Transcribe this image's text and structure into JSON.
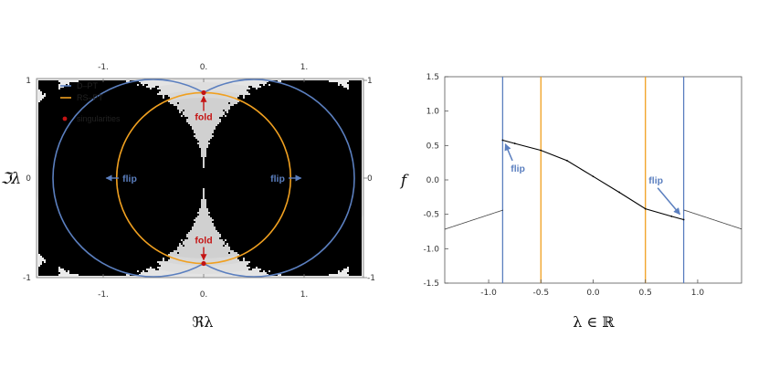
{
  "chart_data": [
    {
      "type": "scatter",
      "title": "",
      "xlabel": "ℜλ",
      "ylabel": "ℑλ",
      "xlim": [
        -1.5,
        1.5
      ],
      "ylim": [
        -1,
        1
      ],
      "x_ticks": [
        "-1.",
        "0.",
        "1."
      ],
      "y_ticks": [
        "-1",
        "0",
        "1"
      ],
      "legend": {
        "placement": "top-left",
        "items": [
          {
            "name": "D–PT",
            "color": "#5b7fbf"
          },
          {
            "name": "RS–PT",
            "color": "#f0a020"
          },
          {
            "name": "singularities",
            "color": "#c41414"
          }
        ]
      },
      "series": [
        {
          "name": "D–PT",
          "kind": "boundary of two unit-radius discs centred at λ = ±0.5",
          "color": "#5b7fbf"
        },
        {
          "name": "RS–PT",
          "kind": "circle |λ| = 0.5√3",
          "radius": 0.866,
          "color": "#f0a020"
        },
        {
          "name": "singularities",
          "points": [
            [
              0,
              0.866
            ],
            [
              0,
              -0.866
            ]
          ],
          "color": "#c41414"
        }
      ],
      "annotations": [
        {
          "text": "flip",
          "at": [
            -0.9,
            0
          ],
          "color": "#5b7fbf"
        },
        {
          "text": "flip",
          "at": [
            0.9,
            0
          ],
          "color": "#5b7fbf"
        },
        {
          "text": "fold",
          "at": [
            0,
            0.6
          ],
          "color": "#c41414"
        },
        {
          "text": "fold",
          "at": [
            0,
            -0.6
          ],
          "color": "#c41414"
        }
      ],
      "grid": false
    },
    {
      "type": "line",
      "title": "",
      "xlabel": "λ ∈ ℝ",
      "ylabel": "f",
      "xlim": [
        -1.42,
        1.42
      ],
      "ylim": [
        -1.5,
        1.5
      ],
      "x_ticks": [
        "-1.0",
        "-0.5",
        "0.0",
        "0.5",
        "1.0"
      ],
      "y_ticks": [
        "-1.5",
        "-1.0",
        "-0.5",
        "0.0",
        "0.5",
        "1.0",
        "1.5"
      ],
      "vertical_lines": [
        {
          "x": -0.866,
          "color": "#5b7fbf"
        },
        {
          "x": -0.5,
          "color": "#f0a020"
        },
        {
          "x": 0.5,
          "color": "#f0a020"
        },
        {
          "x": 0.866,
          "color": "#5b7fbf"
        }
      ],
      "series": [
        {
          "name": "",
          "x": [
            -0.866,
            -0.75,
            -0.5,
            -0.25,
            0.0,
            0.25,
            0.5,
            0.75,
            0.866
          ],
          "y": [
            0.577,
            0.53,
            0.43,
            0.28,
            0.05,
            -0.18,
            -0.42,
            -0.53,
            -0.577
          ]
        }
      ],
      "annotations": [
        {
          "text": "flip",
          "at": [
            -0.65,
            0.15
          ],
          "color": "#5b7fbf"
        },
        {
          "text": "flip",
          "at": [
            0.65,
            -0.1
          ],
          "color": "#5b7fbf"
        }
      ],
      "grid": false
    }
  ]
}
